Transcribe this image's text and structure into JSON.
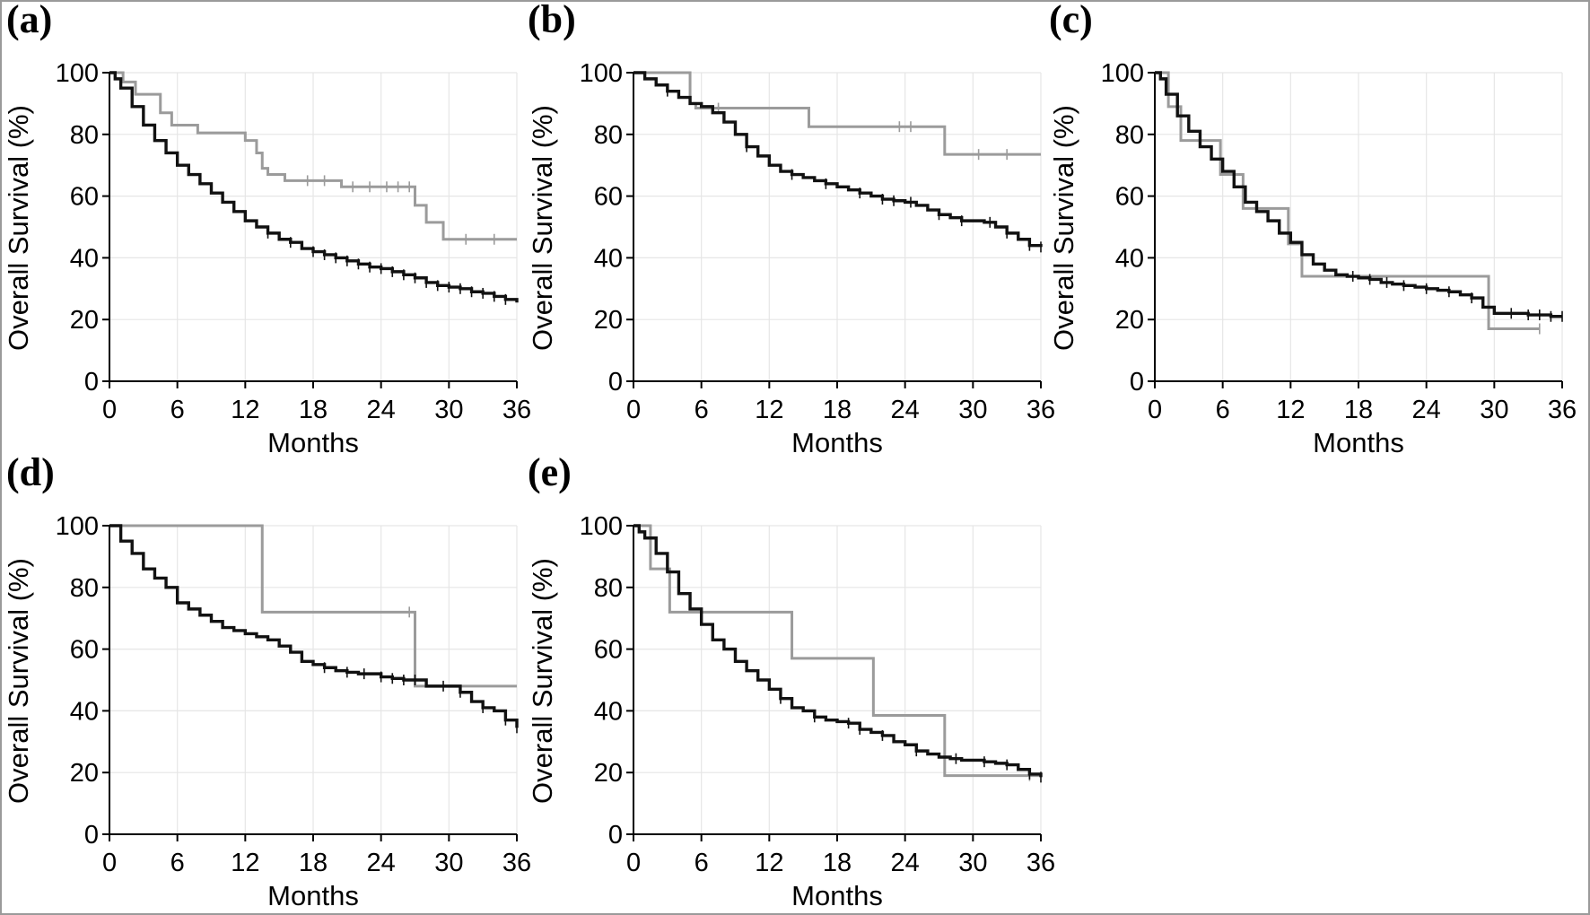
{
  "chart_data": [
    {
      "type": "line",
      "panel_label": "(a)",
      "xlabel": "Months",
      "ylabel": "Overall Survival (%)",
      "xlim": [
        0,
        36
      ],
      "ylim": [
        0,
        100
      ],
      "xticks": [
        0,
        6,
        12,
        18,
        24,
        30,
        36
      ],
      "yticks": [
        0,
        20,
        40,
        60,
        80,
        100
      ],
      "grid": true,
      "series": [
        {
          "color": "#111111",
          "step": true,
          "x": [
            0,
            0.5,
            1,
            2,
            3,
            4,
            5,
            6,
            7,
            8,
            9,
            10,
            11,
            12,
            13,
            14,
            15,
            16,
            17,
            18,
            19,
            20,
            21,
            22,
            23,
            24,
            25,
            26,
            27,
            28,
            29,
            30,
            31,
            32,
            33,
            34,
            35,
            36
          ],
          "y": [
            100,
            98,
            95,
            89,
            83,
            78,
            74,
            70,
            67,
            64,
            61,
            58,
            55,
            52,
            50,
            48,
            46,
            45,
            43,
            42,
            41,
            40,
            39,
            38,
            37,
            36.5,
            35.5,
            34.5,
            33.5,
            32,
            31,
            30.5,
            30,
            29,
            28.5,
            27.5,
            26.5,
            25.5
          ],
          "censored": [
            14,
            16,
            18,
            19,
            20,
            21,
            22,
            23,
            24,
            25,
            26,
            27,
            28,
            29,
            30,
            31,
            32,
            33,
            34,
            35
          ]
        },
        {
          "color": "#9b9b9b",
          "step": true,
          "x": [
            0,
            1.2,
            2.3,
            4.5,
            5.5,
            7.8,
            12,
            13,
            13.5,
            14,
            15.5,
            20.5,
            27,
            28,
            29.5,
            36
          ],
          "y": [
            100,
            97,
            93,
            87,
            83,
            80.5,
            78,
            74,
            69,
            67,
            65,
            63,
            57,
            51.5,
            46,
            46
          ],
          "censored": [
            17.5,
            19,
            21.5,
            23,
            24.5,
            25.5,
            26.5,
            31.5,
            34
          ]
        }
      ]
    },
    {
      "type": "line",
      "panel_label": "(b)",
      "xlabel": "Months",
      "ylabel": "Overall Survival (%)",
      "xlim": [
        0,
        36
      ],
      "ylim": [
        0,
        100
      ],
      "xticks": [
        0,
        6,
        12,
        18,
        24,
        30,
        36
      ],
      "yticks": [
        0,
        20,
        40,
        60,
        80,
        100
      ],
      "grid": true,
      "series": [
        {
          "color": "#111111",
          "step": true,
          "x": [
            0,
            1,
            2,
            3,
            4,
            5,
            6,
            7,
            8,
            9,
            10,
            11,
            12,
            13,
            14,
            15,
            16,
            17,
            18,
            19,
            20,
            21,
            22,
            23,
            24,
            25,
            26,
            27,
            28,
            29,
            30,
            31,
            32,
            33,
            34,
            35,
            36
          ],
          "y": [
            100,
            98,
            96,
            94,
            92,
            90,
            89,
            87,
            84,
            80,
            76,
            73,
            70,
            68,
            67,
            66,
            65,
            64,
            63,
            62,
            61,
            60,
            59,
            58.5,
            58,
            57,
            55.5,
            54,
            53,
            52,
            52,
            51.5,
            50,
            48,
            46,
            44,
            43.5
          ],
          "censored": [
            3,
            10,
            14,
            17,
            20,
            22,
            23,
            24.5,
            27,
            29,
            31.5,
            33,
            35,
            36
          ]
        },
        {
          "color": "#9b9b9b",
          "step": true,
          "x": [
            0,
            5,
            5.5,
            15.5,
            27.5,
            36
          ],
          "y": [
            100,
            90,
            88.5,
            82.5,
            73.5,
            73.5
          ],
          "censored": [
            7.5,
            23.5,
            24.5,
            30.5,
            33
          ]
        }
      ]
    },
    {
      "type": "line",
      "panel_label": "(c)",
      "xlabel": "Months",
      "ylabel": "Overall Survival (%)",
      "xlim": [
        0,
        36
      ],
      "ylim": [
        0,
        100
      ],
      "xticks": [
        0,
        6,
        12,
        18,
        24,
        30,
        36
      ],
      "yticks": [
        0,
        20,
        40,
        60,
        80,
        100
      ],
      "grid": true,
      "series": [
        {
          "color": "#111111",
          "step": true,
          "x": [
            0,
            0.5,
            1,
            2,
            3,
            4,
            5,
            6,
            7,
            8,
            9,
            10,
            11,
            12,
            13,
            14,
            15,
            16,
            17,
            18,
            19,
            20,
            21,
            22,
            23,
            24,
            25,
            26,
            27,
            28,
            29,
            30,
            31,
            32,
            33,
            34,
            35,
            36
          ],
          "y": [
            100,
            98,
            93,
            86,
            81,
            76,
            72,
            68,
            63,
            58,
            55,
            52,
            48,
            45,
            41,
            38,
            36,
            34.5,
            34,
            33.5,
            33,
            32,
            31.5,
            31,
            30.5,
            30,
            29.5,
            29,
            28,
            27,
            24,
            22,
            22,
            22,
            21.5,
            21.5,
            21,
            21
          ],
          "censored": [
            17.5,
            19,
            20.5,
            22,
            24,
            26,
            28,
            31.5,
            33,
            34,
            35,
            36
          ]
        },
        {
          "color": "#9b9b9b",
          "step": true,
          "x": [
            0,
            1.2,
            2.3,
            5.8,
            7.8,
            11.8,
            13,
            29.5,
            34
          ],
          "y": [
            100,
            89,
            78,
            67,
            56,
            44.5,
            34,
            17,
            17
          ],
          "censored": [
            34
          ]
        }
      ]
    },
    {
      "type": "line",
      "panel_label": "(d)",
      "xlabel": "Months",
      "ylabel": "Overall Survival (%)",
      "xlim": [
        0,
        36
      ],
      "ylim": [
        0,
        100
      ],
      "xticks": [
        0,
        6,
        12,
        18,
        24,
        30,
        36
      ],
      "yticks": [
        0,
        20,
        40,
        60,
        80,
        100
      ],
      "grid": true,
      "series": [
        {
          "color": "#111111",
          "step": true,
          "x": [
            0,
            1,
            2,
            3,
            4,
            5,
            6,
            7,
            8,
            9,
            10,
            11,
            12,
            13,
            14,
            15,
            16,
            17,
            18,
            19,
            20,
            21,
            22,
            23,
            24,
            25,
            26,
            27,
            28,
            29,
            30,
            31,
            32,
            33,
            34,
            35,
            36
          ],
          "y": [
            100,
            95,
            91,
            86,
            83,
            80,
            75,
            73,
            71,
            69,
            67,
            66,
            65,
            64,
            63,
            61,
            59,
            56,
            55,
            54,
            53,
            52.5,
            52,
            52,
            51,
            50.5,
            50,
            50,
            48,
            48,
            48,
            46,
            43,
            41,
            40,
            37,
            34.5
          ],
          "censored": [
            19,
            21,
            22.5,
            24,
            25,
            26,
            27,
            29.5,
            31,
            33,
            35,
            36
          ]
        },
        {
          "color": "#9b9b9b",
          "step": true,
          "x": [
            0,
            13.5,
            27,
            28,
            36
          ],
          "y": [
            100,
            72,
            48,
            48,
            48
          ],
          "censored": [
            26.5
          ]
        }
      ]
    },
    {
      "type": "line",
      "panel_label": "(e)",
      "xlabel": "Months",
      "ylabel": "Overall Survival (%)",
      "xlim": [
        0,
        36
      ],
      "ylim": [
        0,
        100
      ],
      "xticks": [
        0,
        6,
        12,
        18,
        24,
        30,
        36
      ],
      "yticks": [
        0,
        20,
        40,
        60,
        80,
        100
      ],
      "grid": true,
      "series": [
        {
          "color": "#111111",
          "step": true,
          "x": [
            0,
            0.5,
            1,
            2,
            3,
            4,
            5,
            6,
            7,
            8,
            9,
            10,
            11,
            12,
            13,
            14,
            15,
            16,
            17,
            18,
            19,
            20,
            21,
            22,
            23,
            24,
            25,
            26,
            27,
            28,
            29,
            30,
            31,
            32,
            33,
            34,
            35,
            36
          ],
          "y": [
            100,
            98,
            96,
            91,
            85,
            78,
            73,
            68,
            63,
            60,
            56,
            53,
            50,
            47,
            44,
            41,
            40,
            38,
            37,
            36.5,
            36,
            34,
            33,
            32,
            30,
            29,
            27,
            26,
            25,
            24.5,
            24,
            24,
            23.5,
            23,
            22.5,
            21,
            19.5,
            18.5
          ],
          "censored": [
            13,
            16,
            19,
            20,
            22,
            25,
            28.5,
            31,
            33,
            35,
            36
          ]
        },
        {
          "color": "#9b9b9b",
          "step": true,
          "x": [
            0,
            1.5,
            3.2,
            4.5,
            14,
            21.2,
            27.5,
            36
          ],
          "y": [
            100,
            86,
            72,
            72,
            57,
            38.5,
            19,
            19
          ],
          "censored": [
            35
          ]
        }
      ]
    }
  ]
}
